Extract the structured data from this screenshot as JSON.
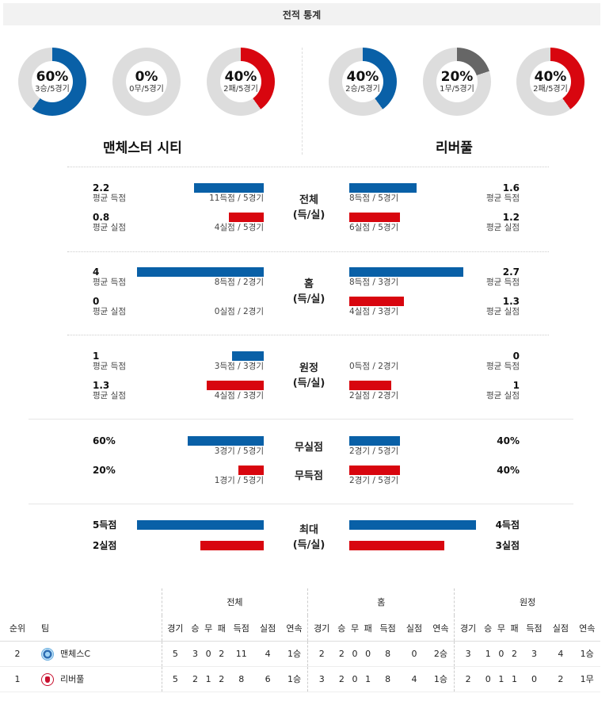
{
  "header": {
    "title": "전적 통계"
  },
  "colors": {
    "blue": "#0960a7",
    "red": "#d8060f",
    "gray": "#666666",
    "track": "#dddddd"
  },
  "donuts": {
    "home": [
      {
        "pct": "60%",
        "sub": "3승/5경기",
        "value": 0.6,
        "color": "#0960a7"
      },
      {
        "pct": "0%",
        "sub": "0무/5경기",
        "value": 0.0,
        "color": "#666666"
      },
      {
        "pct": "40%",
        "sub": "2패/5경기",
        "value": 0.4,
        "color": "#d8060f"
      }
    ],
    "away": [
      {
        "pct": "40%",
        "sub": "2승/5경기",
        "value": 0.4,
        "color": "#0960a7"
      },
      {
        "pct": "20%",
        "sub": "1무/5경기",
        "value": 0.2,
        "color": "#666666"
      },
      {
        "pct": "40%",
        "sub": "2패/5경기",
        "value": 0.4,
        "color": "#d8060f"
      }
    ]
  },
  "teams": {
    "home": "맨체스터 시티",
    "away": "리버풀"
  },
  "sections": {
    "total": {
      "label1": "전체",
      "label2": "(득/실)",
      "home_scored": {
        "value": "2.2",
        "label": "평균 득점",
        "detail": "11득점 / 5경기",
        "level": 2.2
      },
      "home_conceded": {
        "value": "0.8",
        "label": "평균 실점",
        "detail": "4실점 / 5경기",
        "level": 0.8
      },
      "away_scored": {
        "value": "1.6",
        "label": "평균 득점",
        "detail": "8득점 / 5경기",
        "level": 1.6
      },
      "away_conceded": {
        "value": "1.2",
        "label": "평균 실점",
        "detail": "6실점 / 5경기",
        "level": 1.2
      }
    },
    "home": {
      "label1": "홈",
      "label2": "(득/실)",
      "home_scored": {
        "value": "4",
        "label": "평균 득점",
        "detail": "8득점 / 2경기",
        "level": 4
      },
      "home_conceded": {
        "value": "0",
        "label": "평균 실점",
        "detail": "0실점 / 2경기",
        "level": 0
      },
      "away_scored": {
        "value": "2.7",
        "label": "평균 득점",
        "detail": "8득점 / 3경기",
        "level": 2.7
      },
      "away_conceded": {
        "value": "1.3",
        "label": "평균 실점",
        "detail": "4실점 / 3경기",
        "level": 1.3
      }
    },
    "away": {
      "label1": "원정",
      "label2": "(득/실)",
      "home_scored": {
        "value": "1",
        "label": "평균 득점",
        "detail": "3득점 / 3경기",
        "level": 1
      },
      "home_conceded": {
        "value": "1.3",
        "label": "평균 실점",
        "detail": "4실점 / 3경기",
        "level": 1.3
      },
      "away_scored": {
        "value": "0",
        "label": "평균 득점",
        "detail": "0득점 / 2경기",
        "level": 0
      },
      "away_conceded": {
        "value": "1",
        "label": "평균 실점",
        "detail": "2실점 / 2경기",
        "level": 1
      }
    },
    "clean": {
      "label_clean": "무실점",
      "label_noscore": "무득점",
      "home_clean": {
        "value": "60%",
        "detail": "3경기 / 5경기",
        "level": 0.6
      },
      "home_noscore": {
        "value": "20%",
        "detail": "1경기 / 5경기",
        "level": 0.2
      },
      "away_clean": {
        "value": "40%",
        "detail": "2경기 / 5경기",
        "level": 0.4
      },
      "away_noscore": {
        "value": "40%",
        "detail": "2경기 / 5경기",
        "level": 0.4
      }
    },
    "max": {
      "label1": "최대",
      "label2": "(득/실)",
      "home_scored": {
        "value": "5득점",
        "level": 5
      },
      "home_conceded": {
        "value": "2실점",
        "level": 2
      },
      "away_scored": {
        "value": "4득점",
        "level": 4
      },
      "away_conceded": {
        "value": "3실점",
        "level": 3
      }
    }
  },
  "table": {
    "groups": [
      "전체",
      "홈",
      "원정"
    ],
    "col_rank": "순위",
    "col_team": "팀",
    "cols": [
      "경기",
      "승",
      "무",
      "패",
      "득점",
      "실점",
      "연속"
    ],
    "rows": [
      {
        "rank": "2",
        "team": "맨체스C",
        "crest": "mc",
        "total": [
          "5",
          "3",
          "0",
          "2",
          "11",
          "4",
          "1승"
        ],
        "home": [
          "2",
          "2",
          "0",
          "0",
          "8",
          "0",
          "2승"
        ],
        "away": [
          "3",
          "1",
          "0",
          "2",
          "3",
          "4",
          "1승"
        ]
      },
      {
        "rank": "1",
        "team": "리버풀",
        "crest": "lv",
        "total": [
          "5",
          "2",
          "1",
          "2",
          "8",
          "6",
          "1승"
        ],
        "home": [
          "3",
          "2",
          "0",
          "1",
          "8",
          "4",
          "1승"
        ],
        "away": [
          "2",
          "0",
          "1",
          "1",
          "0",
          "2",
          "1무"
        ]
      }
    ]
  }
}
